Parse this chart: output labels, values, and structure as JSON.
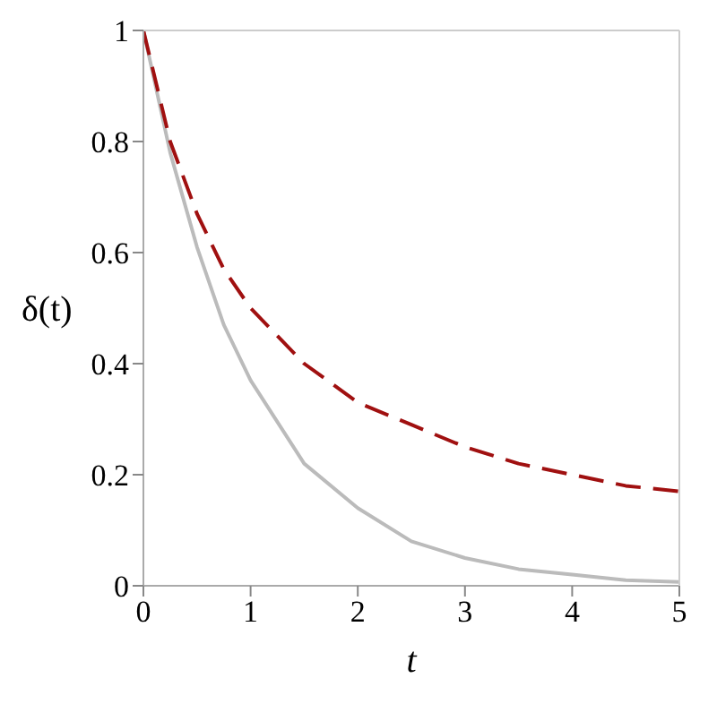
{
  "chart_data": {
    "type": "line",
    "xlabel": "t",
    "ylabel": "δ(t)",
    "xlim": [
      0,
      5
    ],
    "ylim": [
      0,
      1
    ],
    "xticks": [
      0,
      1,
      2,
      3,
      4,
      5
    ],
    "yticks": [
      0,
      0.2,
      0.4,
      0.6,
      0.8,
      1
    ],
    "legend": false,
    "marker": "none",
    "series": [
      {
        "color": "#bbbbbb",
        "line_style": "solid",
        "x": [
          0,
          0.25,
          0.5,
          0.75,
          1,
          1.5,
          2,
          2.5,
          3,
          3.5,
          4,
          4.5,
          5
        ],
        "values": [
          1,
          0.78,
          0.61,
          0.47,
          0.37,
          0.22,
          0.14,
          0.08,
          0.05,
          0.03,
          0.02,
          0.01,
          0.007
        ]
      },
      {
        "color": "#a01010",
        "line_style": "dashed",
        "x": [
          0,
          0.25,
          0.5,
          0.75,
          1,
          1.5,
          2,
          2.5,
          3,
          3.5,
          4,
          4.5,
          5
        ],
        "values": [
          1,
          0.8,
          0.67,
          0.57,
          0.5,
          0.4,
          0.33,
          0.29,
          0.25,
          0.22,
          0.2,
          0.18,
          0.17
        ]
      }
    ]
  }
}
